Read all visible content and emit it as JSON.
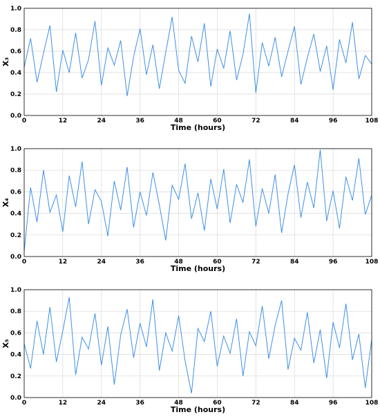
{
  "chart_data": [
    {
      "type": "line",
      "xlabel": "Time (hours)",
      "ylabel": "X₃",
      "grid": true,
      "x": [
        0,
        2,
        4,
        6,
        8,
        10,
        12,
        14,
        16,
        18,
        20,
        22,
        24,
        26,
        28,
        30,
        32,
        34,
        36,
        38,
        40,
        42,
        44,
        46,
        48,
        50,
        52,
        54,
        56,
        58,
        60,
        62,
        64,
        66,
        68,
        70,
        72,
        74,
        76,
        78,
        80,
        82,
        84,
        86,
        88,
        90,
        92,
        94,
        96,
        98,
        100,
        102,
        104,
        106,
        108
      ],
      "xlim": [
        0,
        108
      ],
      "xticks": [
        0,
        12,
        24,
        36,
        48,
        60,
        72,
        84,
        96,
        108
      ],
      "ylim": [
        0,
        1
      ],
      "yticks": [
        {
          "value": 0,
          "label": "0.0"
        },
        0.2,
        0.4,
        0.6,
        0.8,
        {
          "value": 1,
          "label": "1.0"
        }
      ],
      "series": [
        {
          "color": "#3d8fe8",
          "values": [
            0.45,
            0.72,
            0.31,
            0.58,
            0.84,
            0.22,
            0.61,
            0.4,
            0.77,
            0.35,
            0.52,
            0.88,
            0.28,
            0.63,
            0.47,
            0.7,
            0.18,
            0.55,
            0.81,
            0.38,
            0.66,
            0.25,
            0.59,
            0.92,
            0.42,
            0.3,
            0.74,
            0.5,
            0.86,
            0.27,
            0.62,
            0.44,
            0.79,
            0.33,
            0.57,
            0.95,
            0.21,
            0.68,
            0.46,
            0.73,
            0.36,
            0.6,
            0.83,
            0.29,
            0.54,
            0.76,
            0.41,
            0.65,
            0.24,
            0.71,
            0.49,
            0.87,
            0.34,
            0.56,
            0.48
          ]
        }
      ]
    },
    {
      "type": "line",
      "xlabel": "Time (hours)",
      "ylabel": "X₄",
      "grid": true,
      "x": [
        0,
        2,
        4,
        6,
        8,
        10,
        12,
        14,
        16,
        18,
        20,
        22,
        24,
        26,
        28,
        30,
        32,
        34,
        36,
        38,
        40,
        42,
        44,
        46,
        48,
        50,
        52,
        54,
        56,
        58,
        60,
        62,
        64,
        66,
        68,
        70,
        72,
        74,
        76,
        78,
        80,
        82,
        84,
        86,
        88,
        90,
        92,
        94,
        96,
        98,
        100,
        102,
        104,
        106,
        108
      ],
      "xlim": [
        0,
        108
      ],
      "xticks": [
        0,
        12,
        24,
        36,
        48,
        60,
        72,
        84,
        96,
        108
      ],
      "ylim": [
        0,
        1
      ],
      "yticks": [
        {
          "value": 0,
          "label": "0.0"
        },
        0.2,
        0.4,
        0.6,
        0.8,
        {
          "value": 1,
          "label": "1.0"
        }
      ],
      "series": [
        {
          "color": "#3d8fe8",
          "values": [
            0.05,
            0.64,
            0.32,
            0.8,
            0.41,
            0.57,
            0.23,
            0.75,
            0.46,
            0.88,
            0.3,
            0.62,
            0.51,
            0.19,
            0.7,
            0.43,
            0.83,
            0.27,
            0.6,
            0.38,
            0.78,
            0.48,
            0.15,
            0.66,
            0.53,
            0.86,
            0.35,
            0.59,
            0.24,
            0.72,
            0.44,
            0.81,
            0.31,
            0.67,
            0.5,
            0.9,
            0.28,
            0.63,
            0.4,
            0.76,
            0.22,
            0.58,
            0.85,
            0.36,
            0.69,
            0.45,
            0.99,
            0.33,
            0.61,
            0.26,
            0.74,
            0.52,
            0.91,
            0.39,
            0.57
          ]
        }
      ]
    },
    {
      "type": "line",
      "xlabel": "Time (hours)",
      "ylabel": "X₅",
      "grid": true,
      "x": [
        0,
        2,
        4,
        6,
        8,
        10,
        12,
        14,
        16,
        18,
        20,
        22,
        24,
        26,
        28,
        30,
        32,
        34,
        36,
        38,
        40,
        42,
        44,
        46,
        48,
        50,
        52,
        54,
        56,
        58,
        60,
        62,
        64,
        66,
        68,
        70,
        72,
        74,
        76,
        78,
        80,
        82,
        84,
        86,
        88,
        90,
        92,
        94,
        96,
        98,
        100,
        102,
        104,
        106,
        108
      ],
      "xlim": [
        0,
        108
      ],
      "xticks": [
        0,
        12,
        24,
        36,
        48,
        60,
        72,
        84,
        96,
        108
      ],
      "ylim": [
        0,
        1
      ],
      "yticks": [
        {
          "value": 0,
          "label": "0.0"
        },
        0.2,
        0.4,
        0.6,
        0.8,
        {
          "value": 1,
          "label": "1.0"
        }
      ],
      "series": [
        {
          "color": "#3d8fe8",
          "values": [
            0.5,
            0.27,
            0.71,
            0.4,
            0.84,
            0.33,
            0.62,
            0.93,
            0.21,
            0.56,
            0.45,
            0.78,
            0.3,
            0.66,
            0.12,
            0.58,
            0.82,
            0.37,
            0.69,
            0.47,
            0.91,
            0.25,
            0.6,
            0.43,
            0.76,
            0.34,
            0.04,
            0.64,
            0.52,
            0.8,
            0.29,
            0.57,
            0.41,
            0.73,
            0.2,
            0.61,
            0.48,
            0.85,
            0.36,
            0.67,
            0.9,
            0.26,
            0.55,
            0.44,
            0.79,
            0.32,
            0.63,
            0.18,
            0.7,
            0.46,
            0.87,
            0.35,
            0.59,
            0.09,
            0.54
          ]
        }
      ]
    }
  ]
}
